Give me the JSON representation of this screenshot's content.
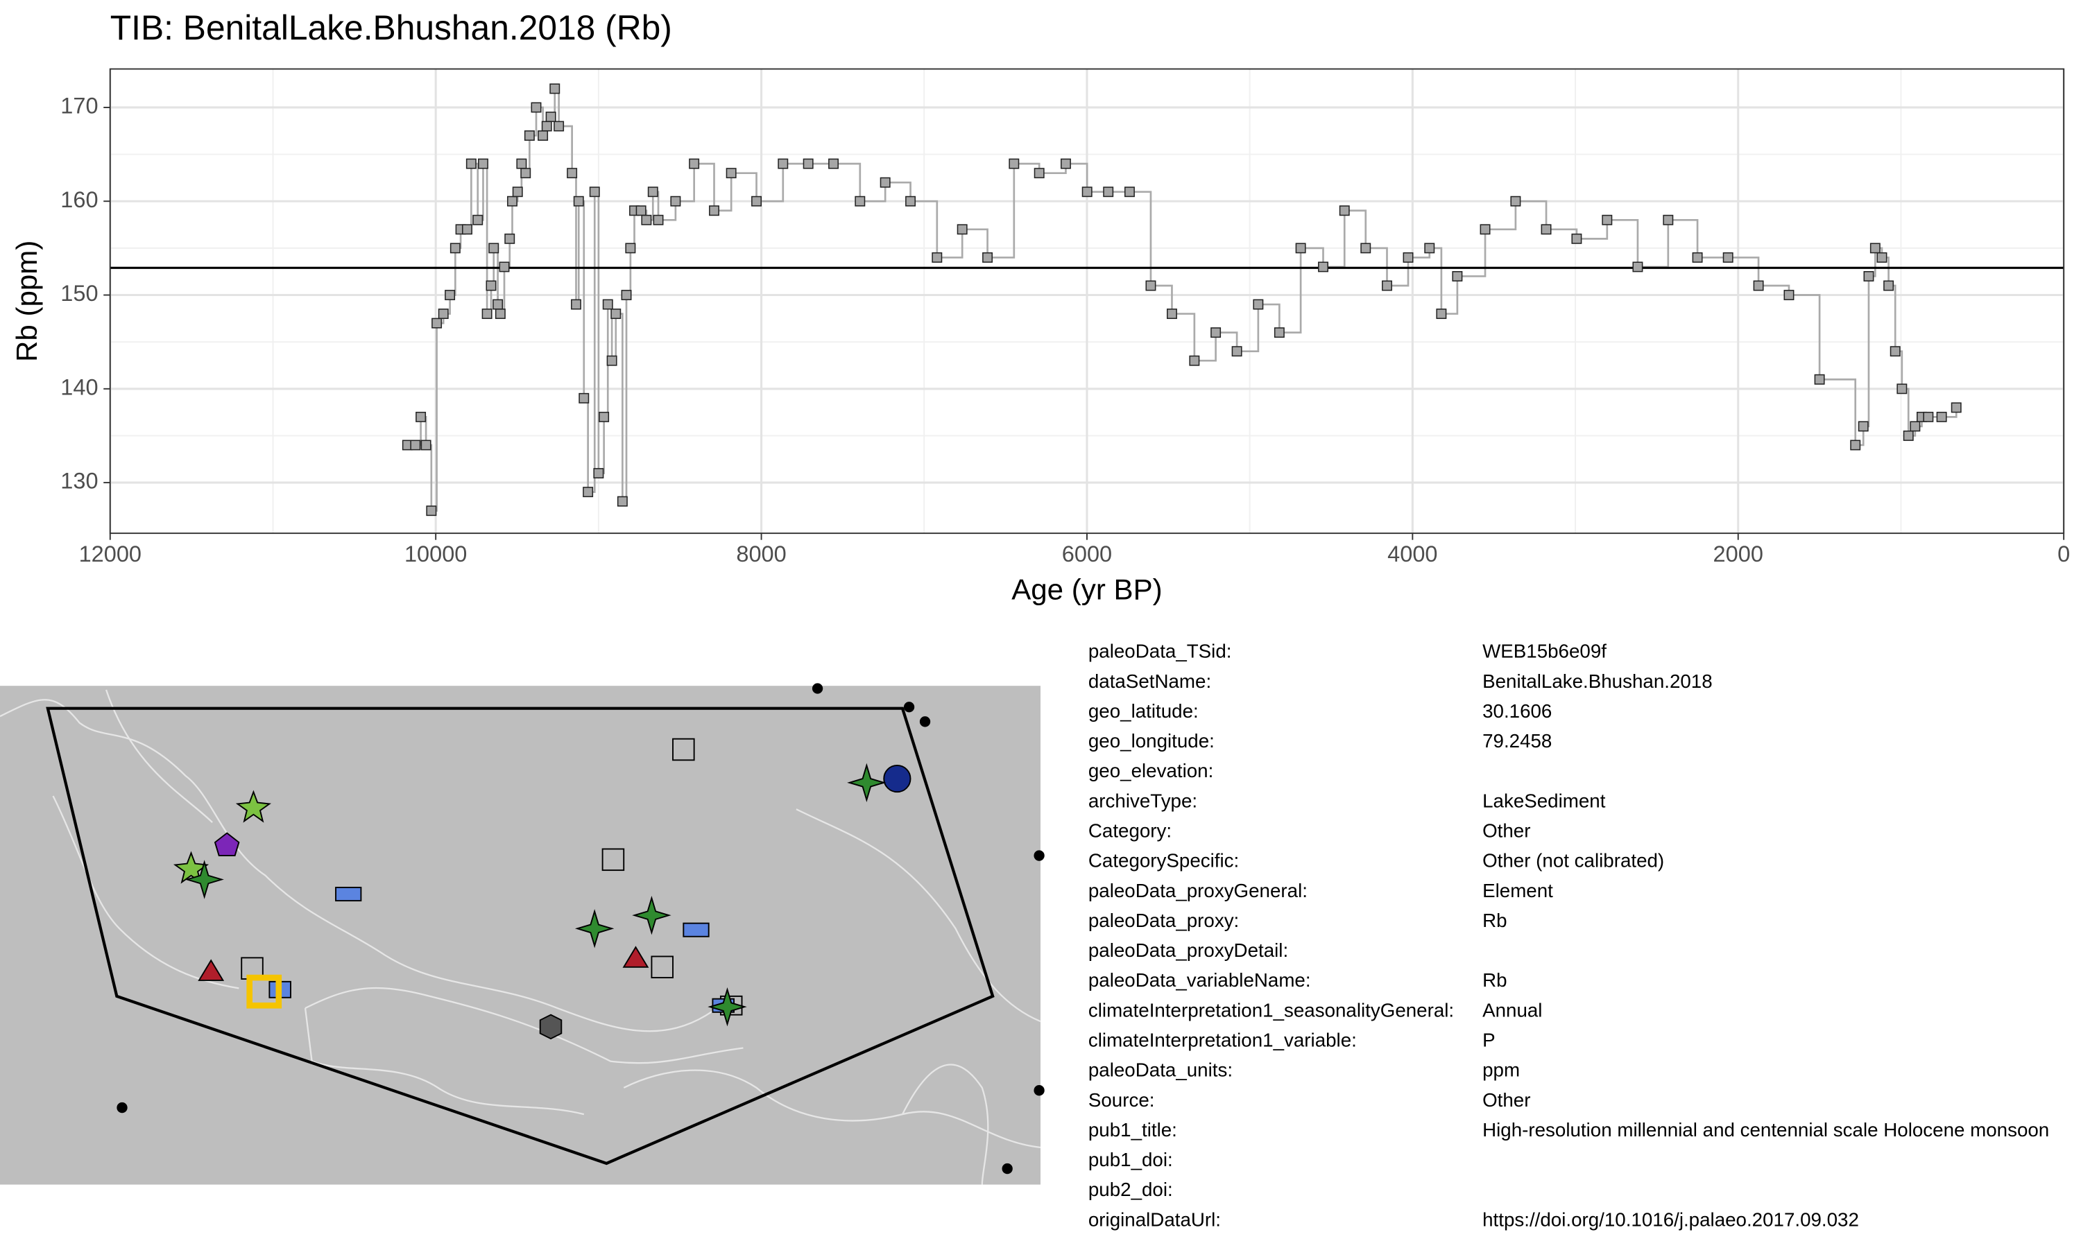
{
  "chart_data": {
    "type": "step",
    "title": "TIB: BenitalLake.Bhushan.2018 (Rb)",
    "xlabel": "Age (yr BP)",
    "ylabel": "Rb (ppm)",
    "x": [
      10174,
      10125,
      10092,
      10060,
      10027,
      9994,
      9953,
      9913,
      9880,
      9847,
      9807,
      9782,
      9742,
      9709,
      9685,
      9660,
      9644,
      9619,
      9603,
      9579,
      9546,
      9530,
      9497,
      9473,
      9448,
      9424,
      9383,
      9342,
      9318,
      9293,
      9269,
      9244,
      9163,
      9138,
      9122,
      9090,
      9065,
      9024,
      9000,
      8967,
      8943,
      8918,
      8894,
      8853,
      8829,
      8804,
      8780,
      8739,
      8706,
      8666,
      8633,
      8527,
      8413,
      8290,
      8185,
      8030,
      7867,
      7712,
      7557,
      7394,
      7239,
      7084,
      6921,
      6766,
      6611,
      6448,
      6293,
      6130,
      5999,
      5869,
      5738,
      5608,
      5478,
      5340,
      5209,
      5079,
      4948,
      4818,
      4687,
      4549,
      4418,
      4288,
      4157,
      4027,
      3896,
      3823,
      3725,
      3554,
      3367,
      3179,
      2992,
      2805,
      2617,
      2430,
      2250,
      2062,
      1875,
      1688,
      1500,
      1280,
      1231,
      1198,
      1158,
      1117,
      1076,
      1035,
      994,
      954,
      913,
      872,
      832,
      750,
      660
    ],
    "values": [
      134,
      134,
      137,
      134,
      127,
      147,
      148,
      150,
      155,
      157,
      157,
      164,
      158,
      164,
      148,
      151,
      155,
      149,
      148,
      153,
      156,
      160,
      161,
      164,
      163,
      167,
      170,
      167,
      168,
      169,
      172,
      168,
      163,
      149,
      160,
      139,
      129,
      161,
      131,
      137,
      149,
      143,
      148,
      128,
      150,
      155,
      159,
      159,
      158,
      161,
      158,
      160,
      164,
      159,
      163,
      160,
      164,
      164,
      164,
      160,
      162,
      160,
      154,
      157,
      154,
      164,
      163,
      164,
      161,
      161,
      161,
      151,
      148,
      143,
      146,
      144,
      149,
      146,
      155,
      153,
      159,
      155,
      151,
      154,
      155,
      148,
      152,
      157,
      160,
      157,
      156,
      158,
      153,
      158,
      154,
      154,
      151,
      150,
      141,
      134,
      136,
      152,
      155,
      154,
      151,
      144,
      140,
      135,
      136,
      137,
      137,
      137,
      138
    ],
    "color": "#aaaaaa",
    "reference_line": 152.9,
    "xlim": [
      12000,
      0
    ],
    "xticks": [
      12000,
      10000,
      8000,
      6000,
      4000,
      2000,
      0
    ],
    "ylim": [
      124.6,
      174.1
    ],
    "yticks": [
      130,
      140,
      150,
      160,
      170
    ],
    "grid": true
  },
  "metadata": {
    "rows": [
      {
        "label": "paleoData_TSid:",
        "value": "WEB15b6e09f"
      },
      {
        "label": "dataSetName:",
        "value": "BenitalLake.Bhushan.2018"
      },
      {
        "label": "geo_latitude:",
        "value": "30.1606"
      },
      {
        "label": "geo_longitude:",
        "value": "79.2458"
      },
      {
        "label": "geo_elevation:"
      },
      {
        "label": "archiveType:",
        "value": "LakeSediment"
      },
      {
        "label": "Category:",
        "value": "Other"
      },
      {
        "label": "CategorySpecific:",
        "value": "Other (not calibrated)"
      },
      {
        "label": "paleoData_proxyGeneral:",
        "value": "Element"
      },
      {
        "label": "paleoData_proxy:",
        "value": "Rb"
      },
      {
        "label": "paleoData_proxyDetail:"
      },
      {
        "label": "paleoData_variableName:",
        "value": "Rb"
      },
      {
        "label": "climateInterpretation1_seasonalityGeneral:",
        "value": "Annual"
      },
      {
        "label": "climateInterpretation1_variable:",
        "value": "P"
      },
      {
        "label": "paleoData_units:",
        "value": "ppm"
      },
      {
        "label": "Source:",
        "value": "Other"
      },
      {
        "label": "pub1_title:",
        "value": "High-resolution millennial and centennial scale Holocene monsoon"
      },
      {
        "label": "pub1_doi:"
      },
      {
        "label": "pub2_doi:"
      },
      {
        "label": "originalDataUrl:",
        "value": "https://doi.org/10.1016/j.palaeo.2017.09.032"
      }
    ]
  }
}
